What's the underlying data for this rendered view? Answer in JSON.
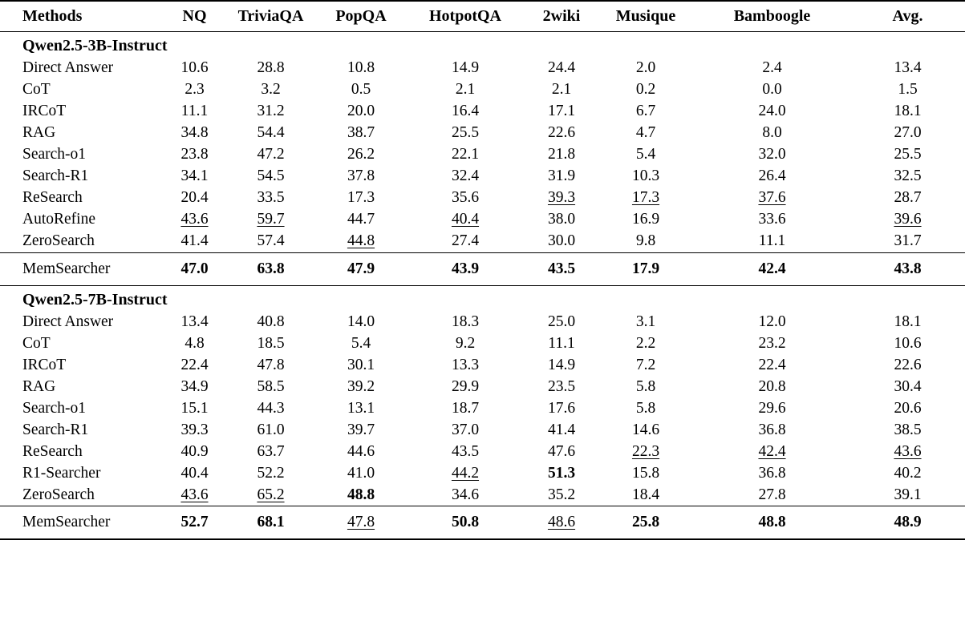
{
  "table": {
    "columns": [
      "Methods",
      "NQ",
      "TriviaQA",
      "PopQA",
      "HotpotQA",
      "2wiki",
      "Musique",
      "Bamboogle",
      "Avg."
    ],
    "legend": {
      "best_style": "bold",
      "second_best_style": "underline"
    },
    "sections": [
      {
        "title": "Qwen2.5-3B-Instruct",
        "rows": [
          {
            "method": "Direct Answer",
            "values": [
              "10.6",
              "28.8",
              "10.8",
              "14.9",
              "24.4",
              "2.0",
              "2.4",
              "13.4"
            ],
            "styles": [
              "",
              "",
              "",
              "",
              "",
              "",
              "",
              ""
            ]
          },
          {
            "method": "CoT",
            "values": [
              "2.3",
              "3.2",
              "0.5",
              "2.1",
              "2.1",
              "0.2",
              "0.0",
              "1.5"
            ],
            "styles": [
              "",
              "",
              "",
              "",
              "",
              "",
              "",
              ""
            ]
          },
          {
            "method": "IRCoT",
            "values": [
              "11.1",
              "31.2",
              "20.0",
              "16.4",
              "17.1",
              "6.7",
              "24.0",
              "18.1"
            ],
            "styles": [
              "",
              "",
              "",
              "",
              "",
              "",
              "",
              ""
            ]
          },
          {
            "method": "RAG",
            "values": [
              "34.8",
              "54.4",
              "38.7",
              "25.5",
              "22.6",
              "4.7",
              "8.0",
              "27.0"
            ],
            "styles": [
              "",
              "",
              "",
              "",
              "",
              "",
              "",
              ""
            ]
          },
          {
            "method": "Search-o1",
            "values": [
              "23.8",
              "47.2",
              "26.2",
              "22.1",
              "21.8",
              "5.4",
              "32.0",
              "25.5"
            ],
            "styles": [
              "",
              "",
              "",
              "",
              "",
              "",
              "",
              ""
            ]
          },
          {
            "method": "Search-R1",
            "values": [
              "34.1",
              "54.5",
              "37.8",
              "32.4",
              "31.9",
              "10.3",
              "26.4",
              "32.5"
            ],
            "styles": [
              "",
              "",
              "",
              "",
              "",
              "",
              "",
              ""
            ]
          },
          {
            "method": "ReSearch",
            "values": [
              "20.4",
              "33.5",
              "17.3",
              "35.6",
              "39.3",
              "17.3",
              "37.6",
              "28.7"
            ],
            "styles": [
              "",
              "",
              "",
              "",
              "u",
              "u",
              "u",
              ""
            ]
          },
          {
            "method": "AutoRefine",
            "values": [
              "43.6",
              "59.7",
              "44.7",
              "40.4",
              "38.0",
              "16.9",
              "33.6",
              "39.6"
            ],
            "styles": [
              "u",
              "u",
              "",
              "u",
              "",
              "",
              "",
              "u"
            ]
          },
          {
            "method": "ZeroSearch",
            "values": [
              "41.4",
              "57.4",
              "44.8",
              "27.4",
              "30.0",
              "9.8",
              "11.1",
              "31.7"
            ],
            "styles": [
              "",
              "",
              "u",
              "",
              "",
              "",
              "",
              ""
            ]
          }
        ],
        "highlight": {
          "method": "MemSearcher",
          "values": [
            "47.0",
            "63.8",
            "47.9",
            "43.9",
            "43.5",
            "17.9",
            "42.4",
            "43.8"
          ],
          "styles": [
            "b",
            "b",
            "b",
            "b",
            "b",
            "b",
            "b",
            "b"
          ]
        }
      },
      {
        "title": "Qwen2.5-7B-Instruct",
        "rows": [
          {
            "method": "Direct Answer",
            "values": [
              "13.4",
              "40.8",
              "14.0",
              "18.3",
              "25.0",
              "3.1",
              "12.0",
              "18.1"
            ],
            "styles": [
              "",
              "",
              "",
              "",
              "",
              "",
              "",
              ""
            ]
          },
          {
            "method": "CoT",
            "values": [
              "4.8",
              "18.5",
              "5.4",
              "9.2",
              "11.1",
              "2.2",
              "23.2",
              "10.6"
            ],
            "styles": [
              "",
              "",
              "",
              "",
              "",
              "",
              "",
              ""
            ]
          },
          {
            "method": "IRCoT",
            "values": [
              "22.4",
              "47.8",
              "30.1",
              "13.3",
              "14.9",
              "7.2",
              "22.4",
              "22.6"
            ],
            "styles": [
              "",
              "",
              "",
              "",
              "",
              "",
              "",
              ""
            ]
          },
          {
            "method": "RAG",
            "values": [
              "34.9",
              "58.5",
              "39.2",
              "29.9",
              "23.5",
              "5.8",
              "20.8",
              "30.4"
            ],
            "styles": [
              "",
              "",
              "",
              "",
              "",
              "",
              "",
              ""
            ]
          },
          {
            "method": "Search-o1",
            "values": [
              "15.1",
              "44.3",
              "13.1",
              "18.7",
              "17.6",
              "5.8",
              "29.6",
              "20.6"
            ],
            "styles": [
              "",
              "",
              "",
              "",
              "",
              "",
              "",
              ""
            ]
          },
          {
            "method": "Search-R1",
            "values": [
              "39.3",
              "61.0",
              "39.7",
              "37.0",
              "41.4",
              "14.6",
              "36.8",
              "38.5"
            ],
            "styles": [
              "",
              "",
              "",
              "",
              "",
              "",
              "",
              ""
            ]
          },
          {
            "method": "ReSearch",
            "values": [
              "40.9",
              "63.7",
              "44.6",
              "43.5",
              "47.6",
              "22.3",
              "42.4",
              "43.6"
            ],
            "styles": [
              "",
              "",
              "",
              "",
              "",
              "u",
              "u",
              "u"
            ]
          },
          {
            "method": "R1-Searcher",
            "values": [
              "40.4",
              "52.2",
              "41.0",
              "44.2",
              "51.3",
              "15.8",
              "36.8",
              "40.2"
            ],
            "styles": [
              "",
              "",
              "",
              "u",
              "b",
              "",
              "",
              ""
            ]
          },
          {
            "method": "ZeroSearch",
            "values": [
              "43.6",
              "65.2",
              "48.8",
              "34.6",
              "35.2",
              "18.4",
              "27.8",
              "39.1"
            ],
            "styles": [
              "u",
              "u",
              "b",
              "",
              "",
              "",
              "",
              ""
            ]
          }
        ],
        "highlight": {
          "method": "MemSearcher",
          "values": [
            "52.7",
            "68.1",
            "47.8",
            "50.8",
            "48.6",
            "25.8",
            "48.8",
            "48.9"
          ],
          "styles": [
            "b",
            "b",
            "u",
            "b",
            "u",
            "b",
            "b",
            "b"
          ]
        }
      }
    ]
  }
}
